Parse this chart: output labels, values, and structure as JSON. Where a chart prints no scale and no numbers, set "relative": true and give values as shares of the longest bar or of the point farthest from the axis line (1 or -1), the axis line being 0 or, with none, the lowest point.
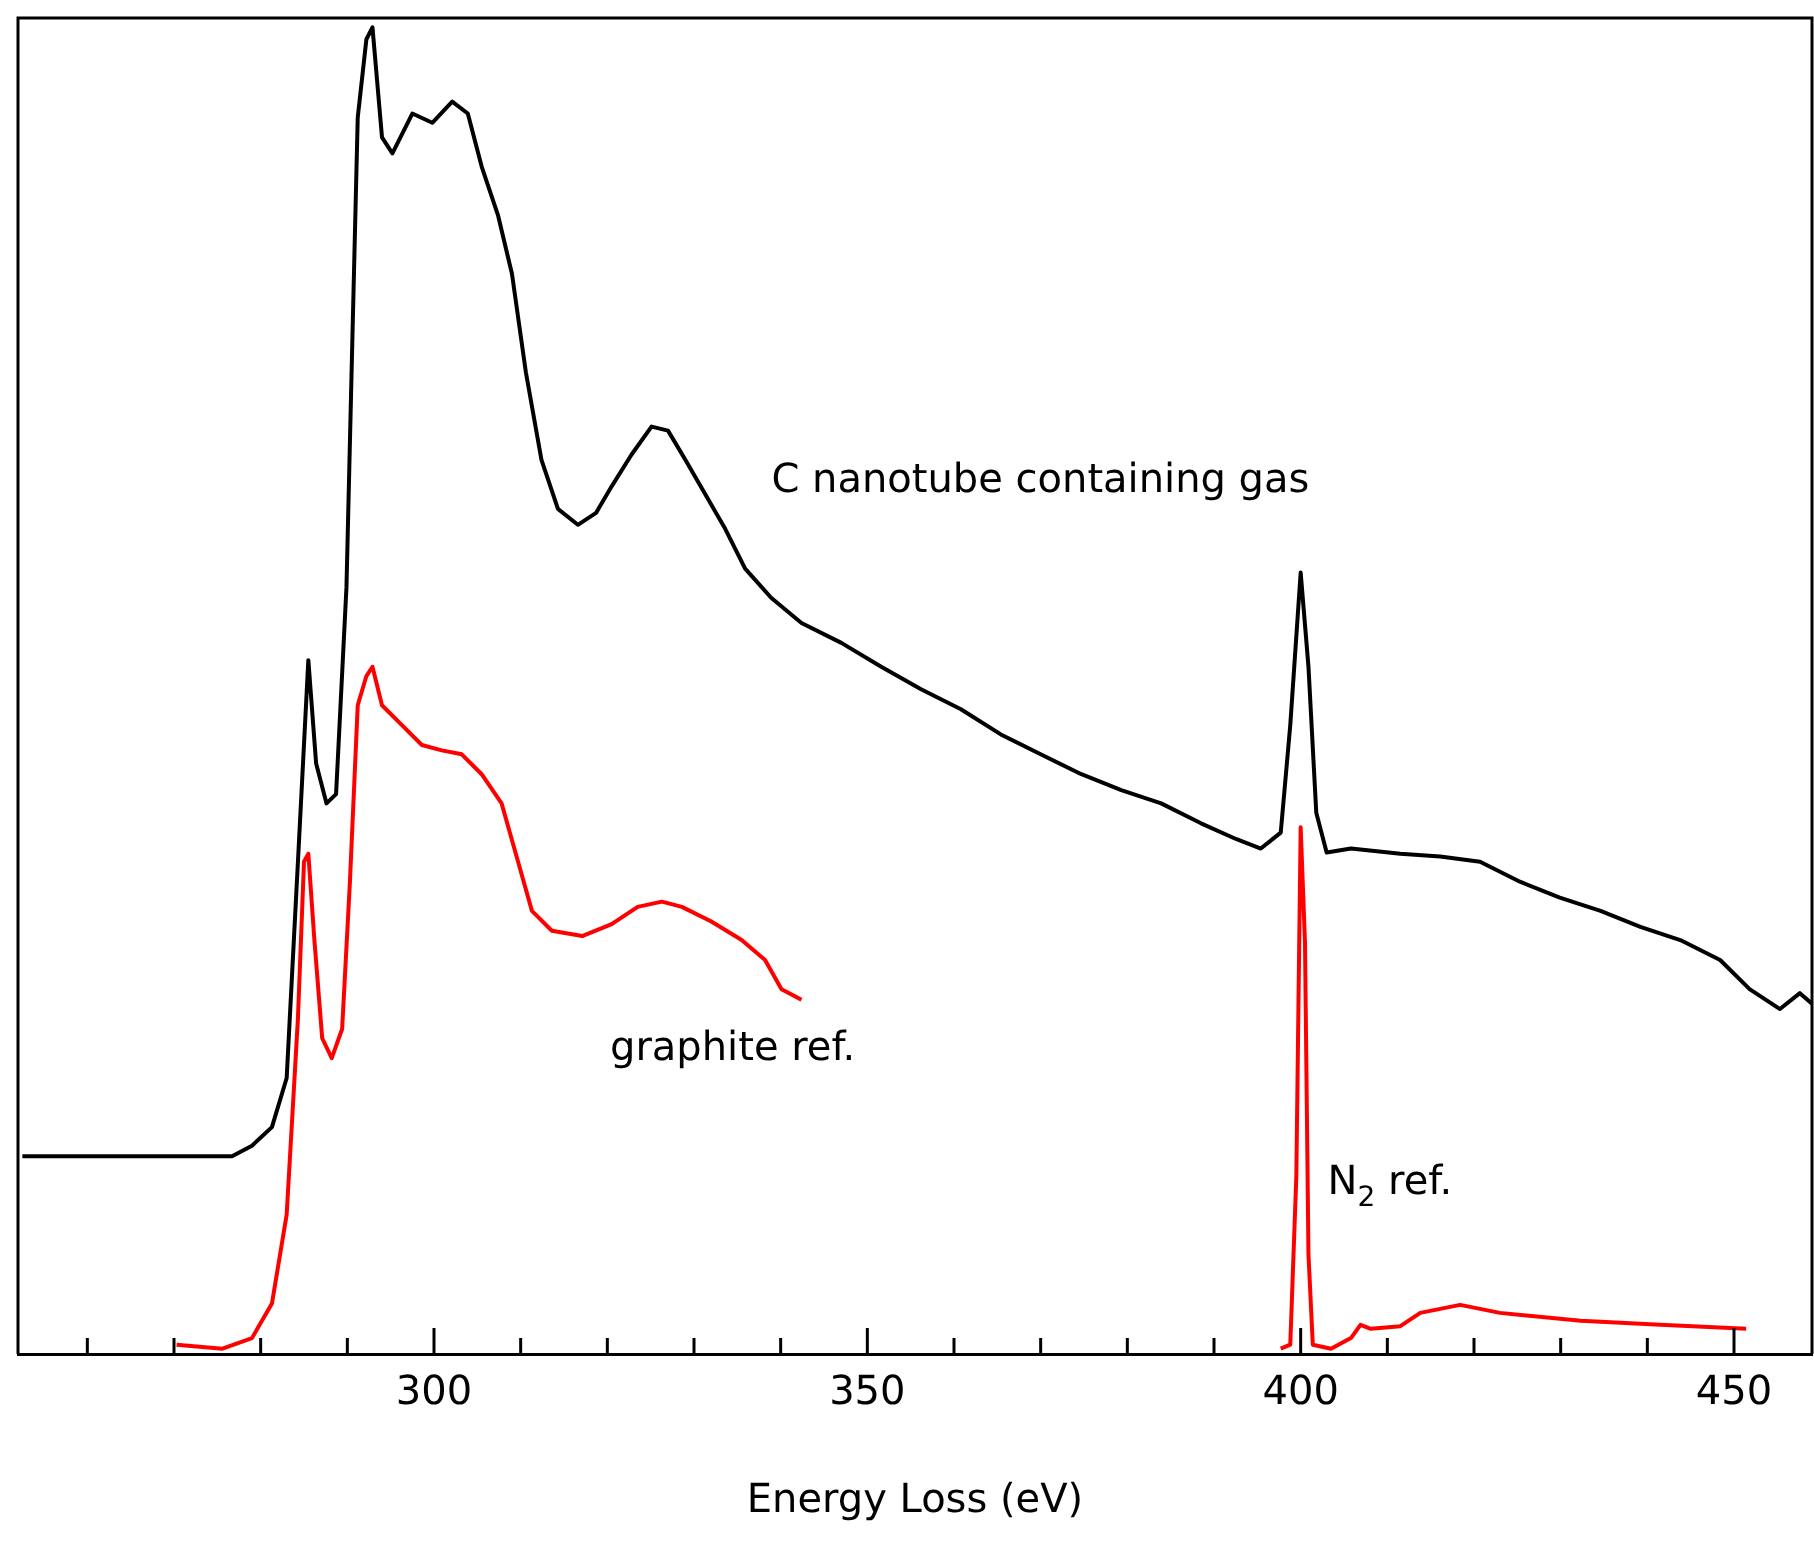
{
  "chart_data": {
    "type": "line",
    "xlabel": "Energy Loss (eV)",
    "relative": true,
    "marker": "none",
    "xlim": [
      252,
      459
    ],
    "xticks": [
      {
        "value": 260,
        "label": null
      },
      {
        "value": 270,
        "label": null
      },
      {
        "value": 280,
        "label": null
      },
      {
        "value": 290,
        "label": null
      },
      300,
      {
        "value": 310,
        "label": null
      },
      {
        "value": 320,
        "label": null
      },
      {
        "value": 330,
        "label": null
      },
      {
        "value": 340,
        "label": null
      },
      350,
      {
        "value": 360,
        "label": null
      },
      {
        "value": 370,
        "label": null
      },
      {
        "value": 380,
        "label": null
      },
      {
        "value": 390,
        "label": null
      },
      400,
      {
        "value": 410,
        "label": null
      },
      {
        "value": 420,
        "label": null
      },
      {
        "value": 430,
        "label": null
      },
      {
        "value": 440,
        "label": null
      },
      450
    ],
    "series": [
      {
        "name": "C nanotube containing gas",
        "color": "#000000",
        "x": [
          252.5,
          276.7,
          279,
          281.3,
          283,
          284.3,
          285.5,
          286.4,
          287.6,
          288.7,
          289.9,
          290.6,
          291.2,
          292.2,
          292.9,
          294,
          295.2,
          297.5,
          299.8,
          302.1,
          303.9,
          305.5,
          307.4,
          309,
          310.6,
          312.4,
          314.3,
          316.6,
          318.7,
          320.5,
          322.8,
          325.1,
          327,
          329,
          331.3,
          333.6,
          335.9,
          338.9,
          342.4,
          347,
          351.6,
          356.2,
          360.8,
          365.4,
          370,
          374.7,
          379.3,
          383.9,
          388.5,
          392.6,
          395.4,
          397.7,
          398.8,
          400,
          400.9,
          401.8,
          403,
          405.8,
          411.5,
          416.1,
          420.7,
          425.3,
          429.9,
          434.6,
          439.2,
          443.8,
          448.4,
          451.8,
          455.3,
          457.6,
          459
        ],
        "values": [
          0.149,
          0.149,
          0.157,
          0.171,
          0.208,
          0.371,
          0.523,
          0.445,
          0.415,
          0.422,
          0.578,
          0.77,
          0.932,
          0.991,
          1.0,
          0.917,
          0.905,
          0.935,
          0.928,
          0.944,
          0.935,
          0.895,
          0.858,
          0.814,
          0.74,
          0.674,
          0.637,
          0.625,
          0.634,
          0.654,
          0.678,
          0.699,
          0.696,
          0.674,
          0.648,
          0.622,
          0.592,
          0.57,
          0.551,
          0.536,
          0.518,
          0.501,
          0.486,
          0.467,
          0.452,
          0.437,
          0.425,
          0.415,
          0.4,
          0.388,
          0.381,
          0.393,
          0.474,
          0.589,
          0.518,
          0.408,
          0.378,
          0.381,
          0.377,
          0.375,
          0.371,
          0.356,
          0.344,
          0.334,
          0.322,
          0.312,
          0.297,
          0.275,
          0.26,
          0.272,
          0.264
        ]
      },
      {
        "name": "graphite ref.",
        "color": "#ff0000",
        "x": [
          270.3,
          275.6,
          279,
          281.3,
          283,
          284.3,
          285,
          285.5,
          286.2,
          287.1,
          288.2,
          289.4,
          290.3,
          291.2,
          292.2,
          292.9,
          294,
          296.3,
          298.6,
          300.9,
          303.2,
          305.5,
          307.8,
          309.7,
          311.3,
          313.6,
          317.1,
          320.5,
          323.5,
          326.3,
          328.6,
          332,
          335.5,
          338.2,
          340.1,
          342.4
        ],
        "values": [
          0.007,
          0.004,
          0.012,
          0.038,
          0.105,
          0.253,
          0.371,
          0.377,
          0.312,
          0.238,
          0.223,
          0.245,
          0.356,
          0.489,
          0.511,
          0.518,
          0.489,
          0.474,
          0.459,
          0.455,
          0.452,
          0.437,
          0.415,
          0.371,
          0.334,
          0.319,
          0.315,
          0.324,
          0.337,
          0.341,
          0.337,
          0.326,
          0.312,
          0.297,
          0.275,
          0.267
        ]
      },
      {
        "name": "N$_{2}$ ref.",
        "color": "#ff0000",
        "x": [
          397.7,
          398.8,
          399.5,
          400,
          400.5,
          400.9,
          401.4,
          403.5,
          405.8,
          406.9,
          408.1,
          411.5,
          413.8,
          418.4,
          423,
          432.3,
          441.5,
          451.4
        ],
        "values": [
          0.004,
          0.007,
          0.134,
          0.397,
          0.31,
          0.075,
          0.007,
          0.004,
          0.012,
          0.022,
          0.019,
          0.021,
          0.031,
          0.037,
          0.031,
          0.025,
          0.022,
          0.019
        ]
      }
    ]
  }
}
